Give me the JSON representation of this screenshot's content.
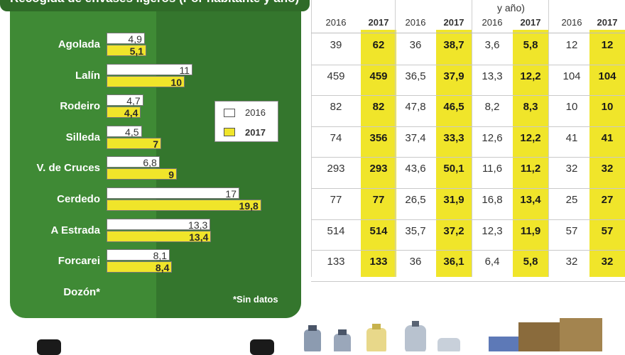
{
  "header": {
    "title": "Recogida de envases ligeros (Por habitante y año)",
    "col_fragment": "y año)"
  },
  "legend": {
    "label_2016": "2016",
    "label_2017": "2017",
    "color_2016": "#ffffff",
    "color_2017": "#f0e52a"
  },
  "note": "*Sin datos",
  "chart_data": {
    "type": "bar",
    "title": "Recogida de envases ligeros (Por habitante y año)",
    "categories": [
      "Agolada",
      "Lalín",
      "Rodeiro",
      "Silleda",
      "V. de Cruces",
      "Cerdedo",
      "A Estrada",
      "Forcarei",
      "Dozón*"
    ],
    "series": [
      {
        "name": "2016",
        "labels": [
          "4,9",
          "11",
          "4,7",
          "4,5",
          "6,8",
          "17",
          "13,3",
          "8,1",
          ""
        ],
        "values": [
          4.9,
          11,
          4.7,
          4.5,
          6.8,
          17,
          13.3,
          8.1,
          null
        ]
      },
      {
        "name": "2017",
        "labels": [
          "5,1",
          "10",
          "4,4",
          "7",
          "9",
          "19,8",
          "13,4",
          "8,4",
          ""
        ],
        "values": [
          5.1,
          10,
          4.4,
          7,
          9,
          19.8,
          13.4,
          8.4,
          null
        ]
      }
    ],
    "xlim": [
      0,
      20
    ]
  },
  "table": {
    "year_headers": [
      "2016",
      "2017",
      "2016",
      "2017",
      "2016",
      "2017",
      "2016",
      "2017"
    ],
    "rows": [
      [
        "39",
        "62",
        "36",
        "38,7",
        "3,6",
        "5,8",
        "12",
        "12"
      ],
      [
        "459",
        "459",
        "36,5",
        "37,9",
        "13,3",
        "12,2",
        "104",
        "104"
      ],
      [
        "82",
        "82",
        "47,8",
        "46,5",
        "8,2",
        "8,3",
        "10",
        "10"
      ],
      [
        "74",
        "356",
        "37,4",
        "33,3",
        "12,6",
        "12,2",
        "41",
        "41"
      ],
      [
        "293",
        "293",
        "43,6",
        "50,1",
        "11,6",
        "11,2",
        "32",
        "32"
      ],
      [
        "77",
        "77",
        "26,5",
        "31,9",
        "16,8",
        "13,4",
        "25",
        "27"
      ],
      [
        "514",
        "514",
        "35,7",
        "37,2",
        "12,3",
        "11,9",
        "57",
        "57"
      ],
      [
        "133",
        "133",
        "36",
        "36,1",
        "6,4",
        "5,8",
        "32",
        "32"
      ]
    ]
  }
}
